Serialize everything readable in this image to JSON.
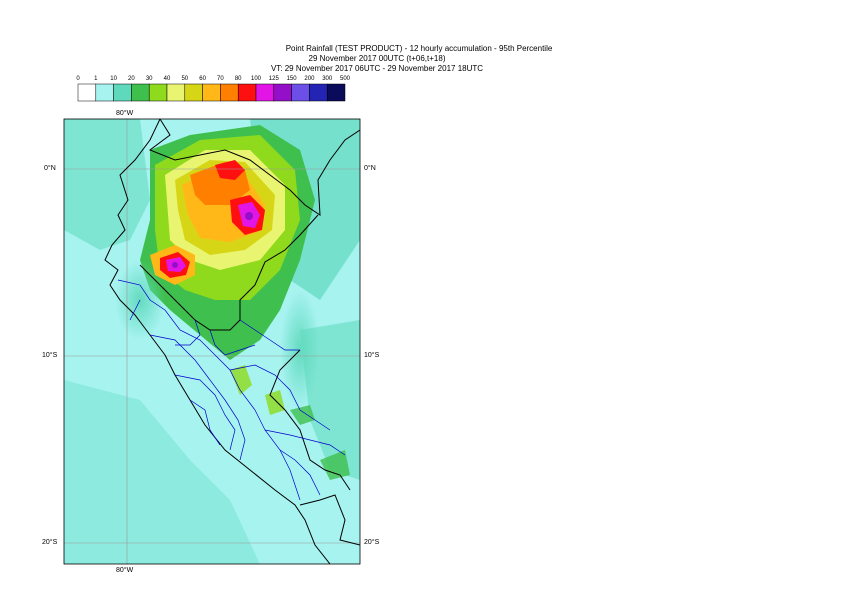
{
  "title": {
    "line1": "Point Rainfall (TEST PRODUCT) - 12 hourly accumulation - 95th Percentile",
    "line2": "29 November 2017 00UTC (t+06,t+18)",
    "line3": "VT: 29 November 2017 06UTC - 29 November 2017 18UTC"
  },
  "legend": {
    "ticks": [
      "0",
      "1",
      "10",
      "20",
      "30",
      "40",
      "50",
      "60",
      "70",
      "80",
      "100",
      "125",
      "150",
      "200",
      "300",
      "500"
    ],
    "colors": [
      "#ffffff",
      "#a7f3f0",
      "#5fd9bc",
      "#3fbf4e",
      "#8fda1c",
      "#e9f570",
      "#d7d616",
      "#ffb818",
      "#ff7f00",
      "#ff1010",
      "#e116e6",
      "#9310c8",
      "#6b4fe6",
      "#2424b4",
      "#0b0b5c"
    ]
  },
  "axes": {
    "lon_top": "80°W",
    "lon_bottom": "80°W",
    "lat_left": [
      "0°N",
      "10°S",
      "20°S"
    ],
    "lat_right": [
      "0°N",
      "10°S",
      "20°S"
    ]
  },
  "colors": {
    "ocean": "#a7f3f0",
    "country_border": "#000000",
    "region_border": "#0000cc",
    "grid": "#999999"
  }
}
